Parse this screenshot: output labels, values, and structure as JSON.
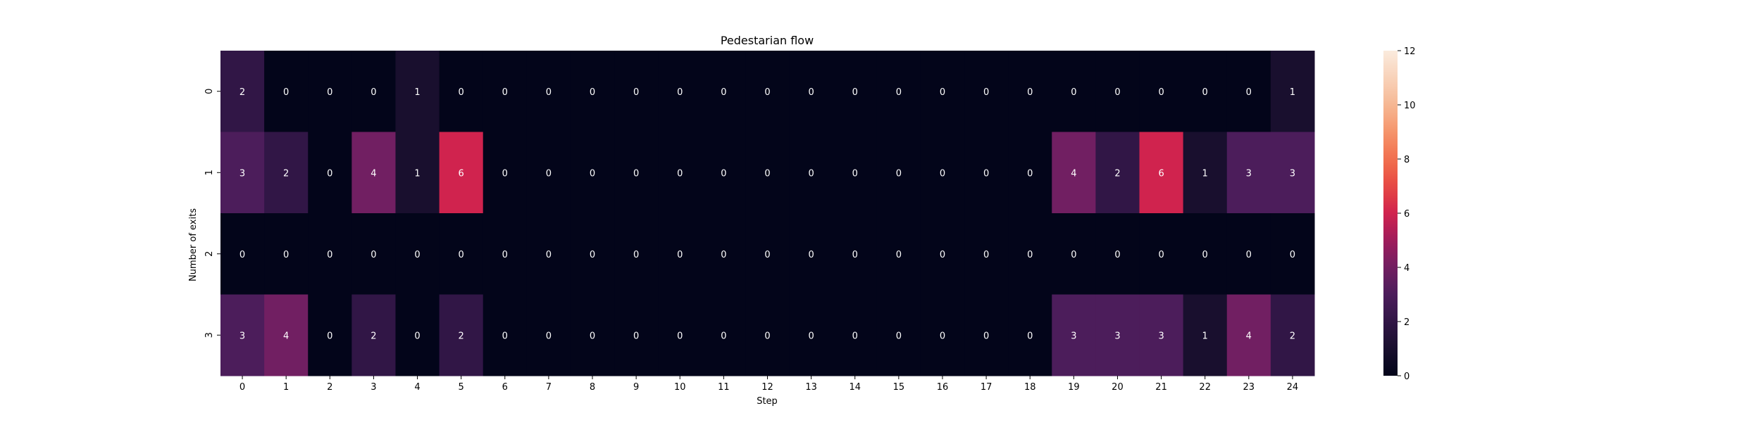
{
  "chart_data": {
    "type": "heatmap",
    "title": "Pedestarian flow",
    "xlabel": "Step",
    "ylabel": "Number of exits",
    "x_categories": [
      "0",
      "1",
      "2",
      "3",
      "4",
      "5",
      "6",
      "7",
      "8",
      "9",
      "10",
      "11",
      "12",
      "13",
      "14",
      "15",
      "16",
      "17",
      "18",
      "19",
      "20",
      "21",
      "22",
      "23",
      "24"
    ],
    "y_categories": [
      "0",
      "1",
      "2",
      "3"
    ],
    "values": [
      [
        2,
        0,
        0,
        0,
        1,
        0,
        0,
        0,
        0,
        0,
        0,
        0,
        0,
        0,
        0,
        0,
        0,
        0,
        0,
        0,
        0,
        0,
        0,
        0,
        1
      ],
      [
        3,
        2,
        0,
        4,
        1,
        6,
        0,
        0,
        0,
        0,
        0,
        0,
        0,
        0,
        0,
        0,
        0,
        0,
        0,
        4,
        2,
        6,
        1,
        3,
        3
      ],
      [
        0,
        0,
        0,
        0,
        0,
        0,
        0,
        0,
        0,
        0,
        0,
        0,
        0,
        0,
        0,
        0,
        0,
        0,
        0,
        0,
        0,
        0,
        0,
        0,
        0
      ],
      [
        3,
        4,
        0,
        2,
        0,
        2,
        0,
        0,
        0,
        0,
        0,
        0,
        0,
        0,
        0,
        0,
        0,
        0,
        0,
        3,
        3,
        3,
        1,
        4,
        2
      ]
    ],
    "annotations": true,
    "colormap": "rocket",
    "colorbar": {
      "range": [
        0,
        12
      ],
      "ticks": [
        "0",
        "2",
        "4",
        "6",
        "8",
        "10",
        "12"
      ]
    }
  }
}
